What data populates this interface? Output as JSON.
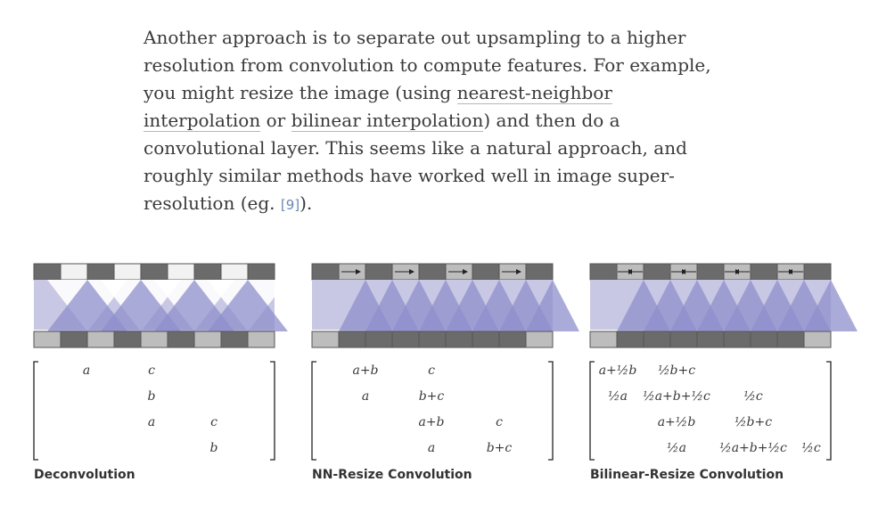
{
  "paragraph": {
    "line1": "Another approach is to separate out upsampling to a higher",
    "line2": "resolution from convolution to compute features. For example,",
    "line3_a": "you might resize the image (using ",
    "link_nn_1": "nearest-neighbor",
    "link_nn_2": "interpolation",
    "line4_b": " or ",
    "link_bilinear": "bilinear interpolation",
    "line4_c": ") and then do a",
    "line5": "convolutional layer. This seems like a natural approach, and",
    "line6": "roughly similar methods have worked well in image super-",
    "line7_a": "resolution (eg. ",
    "citation": "[9]",
    "line7_b": ")."
  },
  "colors": {
    "dark_cell": "#6b6b6b",
    "light_cell": "#bdbdbd",
    "white_cell": "#f2f2f2",
    "band": "#c8c8e4",
    "tri": "#8f8fcc",
    "text": "#3a3a3a",
    "link": "#6a86b3"
  },
  "figures": [
    {
      "caption": "Deconvolution",
      "matrix": [
        [
          "a",
          "c",
          "",
          ""
        ],
        [
          "",
          "b",
          "",
          ""
        ],
        [
          "",
          "a",
          "c",
          ""
        ],
        [
          "",
          "",
          "b",
          ""
        ]
      ]
    },
    {
      "caption": "NN-Resize Convolution",
      "matrix": [
        [
          "a+b",
          "c",
          "",
          ""
        ],
        [
          "a",
          "b+c",
          "",
          ""
        ],
        [
          "",
          "a+b",
          "c",
          ""
        ],
        [
          "",
          "a",
          "b+c",
          ""
        ]
      ]
    },
    {
      "caption": "Bilinear-Resize Convolution",
      "matrix": [
        [
          "a+½b",
          "½b+c",
          "",
          ""
        ],
        [
          "½a",
          "½a+b+½c",
          "½c",
          ""
        ],
        [
          "",
          "a+½b",
          "½b+c",
          ""
        ],
        [
          "",
          "½a",
          "½a+b+½c",
          "½c"
        ]
      ]
    }
  ]
}
